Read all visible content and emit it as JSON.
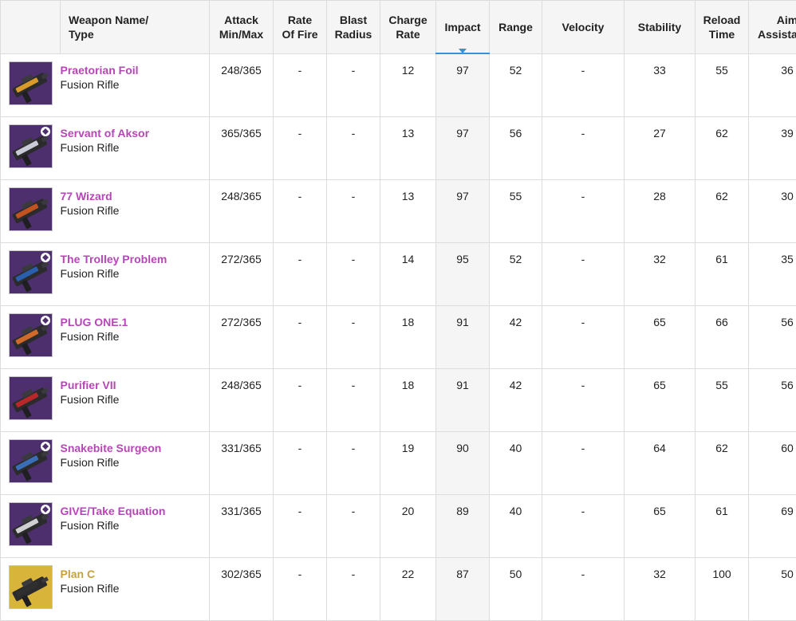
{
  "headers": {
    "name": [
      "Weapon Name/",
      "Type"
    ],
    "attack": [
      "Attack",
      "Min/Max"
    ],
    "rate_of_fire": [
      "Rate",
      "Of Fire"
    ],
    "blast_radius": [
      "Blast",
      "Radius"
    ],
    "charge_rate": [
      "Charge",
      "Rate"
    ],
    "impact": [
      "Impact"
    ],
    "range": [
      "Range"
    ],
    "velocity": [
      "Velocity"
    ],
    "stability": [
      "Stability"
    ],
    "reload_time": [
      "Reload",
      "Time"
    ],
    "aim_assistance": [
      "Aim",
      "Assistance"
    ]
  },
  "sorted_column": "impact",
  "colors": {
    "legendary_name": "#b845b8",
    "exotic_name": "#c9a13a",
    "sort_accent": "#3d8fd6",
    "legendary_bg": "#4d2f6e",
    "exotic_bg": "#d9b43a"
  },
  "weapons": [
    {
      "name": "Praetorian Foil",
      "type": "Fusion Rifle",
      "rarity": "legendary",
      "attack": "248/365",
      "rate_of_fire": "-",
      "blast_radius": "-",
      "charge_rate": "12",
      "impact": "97",
      "range": "52",
      "velocity": "-",
      "stability": "33",
      "reload_time": "55",
      "aim_assistance": "36",
      "icon": "fusion-rifle-icon",
      "icon_accent": "#d89a2a",
      "badge": false
    },
    {
      "name": "Servant of Aksor",
      "type": "Fusion Rifle",
      "rarity": "legendary",
      "attack": "365/365",
      "rate_of_fire": "-",
      "blast_radius": "-",
      "charge_rate": "13",
      "impact": "97",
      "range": "56",
      "velocity": "-",
      "stability": "27",
      "reload_time": "62",
      "aim_assistance": "39",
      "icon": "fusion-rifle-icon",
      "icon_accent": "#c9ccd6",
      "badge": true
    },
    {
      "name": "77 Wizard",
      "type": "Fusion Rifle",
      "rarity": "legendary",
      "attack": "248/365",
      "rate_of_fire": "-",
      "blast_radius": "-",
      "charge_rate": "13",
      "impact": "97",
      "range": "55",
      "velocity": "-",
      "stability": "28",
      "reload_time": "62",
      "aim_assistance": "30",
      "icon": "fusion-rifle-icon",
      "icon_accent": "#c0531f",
      "badge": false
    },
    {
      "name": "The Trolley Problem",
      "type": "Fusion Rifle",
      "rarity": "legendary",
      "attack": "272/365",
      "rate_of_fire": "-",
      "blast_radius": "-",
      "charge_rate": "14",
      "impact": "95",
      "range": "52",
      "velocity": "-",
      "stability": "32",
      "reload_time": "61",
      "aim_assistance": "35",
      "icon": "fusion-rifle-icon",
      "icon_accent": "#2a5fae",
      "badge": true
    },
    {
      "name": "PLUG ONE.1",
      "type": "Fusion Rifle",
      "rarity": "legendary",
      "attack": "272/365",
      "rate_of_fire": "-",
      "blast_radius": "-",
      "charge_rate": "18",
      "impact": "91",
      "range": "42",
      "velocity": "-",
      "stability": "65",
      "reload_time": "66",
      "aim_assistance": "56",
      "icon": "fusion-rifle-icon",
      "icon_accent": "#d06a2a",
      "badge": true
    },
    {
      "name": "Purifier VII",
      "type": "Fusion Rifle",
      "rarity": "legendary",
      "attack": "248/365",
      "rate_of_fire": "-",
      "blast_radius": "-",
      "charge_rate": "18",
      "impact": "91",
      "range": "42",
      "velocity": "-",
      "stability": "65",
      "reload_time": "55",
      "aim_assistance": "56",
      "icon": "fusion-rifle-icon",
      "icon_accent": "#b8282a",
      "badge": false
    },
    {
      "name": "Snakebite Surgeon",
      "type": "Fusion Rifle",
      "rarity": "legendary",
      "attack": "331/365",
      "rate_of_fire": "-",
      "blast_radius": "-",
      "charge_rate": "19",
      "impact": "90",
      "range": "40",
      "velocity": "-",
      "stability": "64",
      "reload_time": "62",
      "aim_assistance": "60",
      "icon": "fusion-rifle-icon",
      "icon_accent": "#3a6fb8",
      "badge": true
    },
    {
      "name": "GIVE/Take Equation",
      "type": "Fusion Rifle",
      "rarity": "legendary",
      "attack": "331/365",
      "rate_of_fire": "-",
      "blast_radius": "-",
      "charge_rate": "20",
      "impact": "89",
      "range": "40",
      "velocity": "-",
      "stability": "65",
      "reload_time": "61",
      "aim_assistance": "69",
      "icon": "fusion-rifle-icon",
      "icon_accent": "#d0d0d0",
      "badge": true
    },
    {
      "name": "Plan C",
      "type": "Fusion Rifle",
      "rarity": "exotic",
      "attack": "302/365",
      "rate_of_fire": "-",
      "blast_radius": "-",
      "charge_rate": "22",
      "impact": "87",
      "range": "50",
      "velocity": "-",
      "stability": "32",
      "reload_time": "100",
      "aim_assistance": "50",
      "icon": "fusion-rifle-icon",
      "icon_accent": "#2f2f2f",
      "badge": false
    }
  ]
}
